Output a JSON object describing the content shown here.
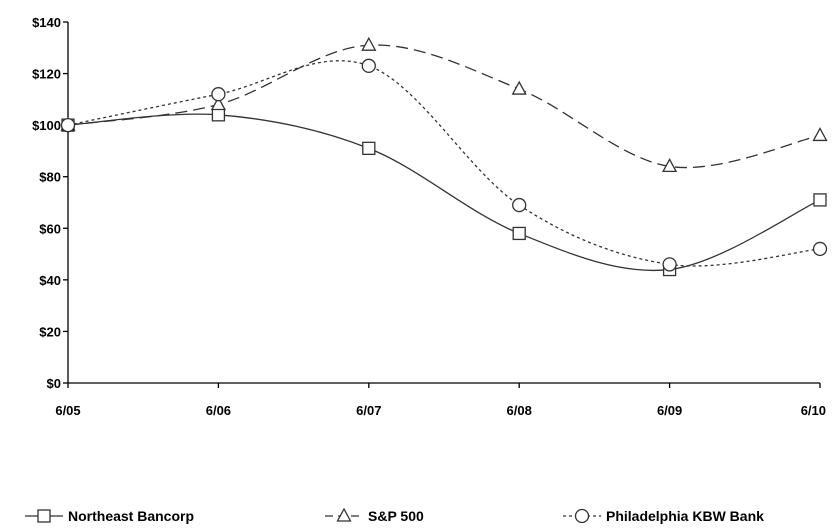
{
  "chart_data": {
    "type": "line",
    "x": [
      "6/05",
      "6/06",
      "6/07",
      "6/08",
      "6/09",
      "6/10"
    ],
    "y_ticks": [
      "$0",
      "$20",
      "$40",
      "$60",
      "$80",
      "$100",
      "$120",
      "$140"
    ],
    "ylim": [
      0,
      140
    ],
    "grid": false,
    "legend_position": "bottom",
    "series": [
      {
        "name": "Northeast Bancorp",
        "marker": "square",
        "style": "solid",
        "values": [
          100,
          104,
          91,
          58,
          44,
          71
        ]
      },
      {
        "name": "S&P 500",
        "marker": "triangle",
        "style": "dashed",
        "values": [
          100,
          108,
          131,
          114,
          84,
          96
        ]
      },
      {
        "name": "Philadelphia KBW Bank",
        "marker": "circle",
        "style": "dotted",
        "values": [
          100,
          112,
          123,
          69,
          46,
          52
        ]
      }
    ]
  }
}
